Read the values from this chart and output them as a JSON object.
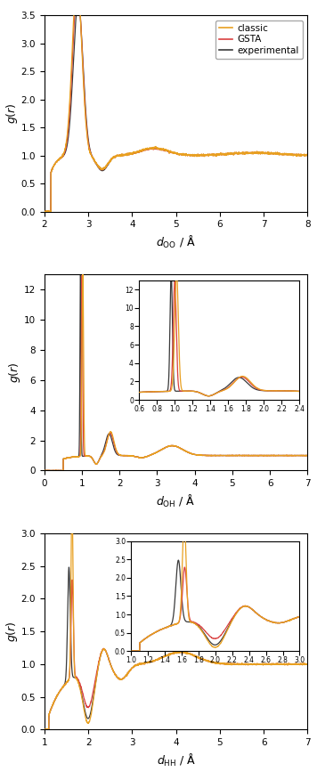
{
  "colors": {
    "classic": "#E8A020",
    "gsta": "#D94040",
    "experimental": "#3A3A3A"
  },
  "plot1": {
    "xlim": [
      2,
      8
    ],
    "ylim": [
      0,
      3.5
    ],
    "xticks": [
      2,
      3,
      4,
      5,
      6,
      7,
      8
    ],
    "yticks": [
      0.0,
      0.5,
      1.0,
      1.5,
      2.0,
      2.5,
      3.0,
      3.5
    ]
  },
  "plot2": {
    "xlim": [
      0,
      7
    ],
    "ylim": [
      0,
      13
    ],
    "xticks": [
      0,
      1,
      2,
      3,
      4,
      5,
      6,
      7
    ],
    "yticks": [
      0,
      2,
      4,
      6,
      8,
      10,
      12
    ]
  },
  "plot3": {
    "xlim": [
      1,
      7
    ],
    "ylim": [
      0.0,
      3.0
    ],
    "xticks": [
      1,
      2,
      3,
      4,
      5,
      6,
      7
    ],
    "yticks": [
      0.0,
      0.5,
      1.0,
      1.5,
      2.0,
      2.5,
      3.0
    ]
  }
}
